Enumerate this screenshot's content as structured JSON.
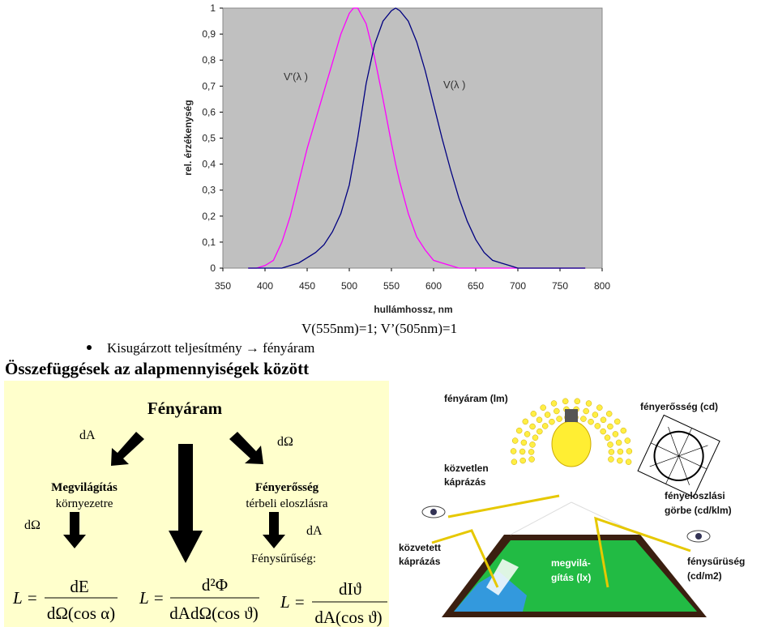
{
  "chart_data": {
    "type": "line",
    "x_label": "hullámhossz, nm",
    "y_label": "rel. érzékenység",
    "x": [
      380,
      390,
      400,
      410,
      420,
      430,
      440,
      450,
      460,
      470,
      480,
      490,
      500,
      505,
      510,
      520,
      530,
      540,
      550,
      555,
      560,
      570,
      580,
      590,
      600,
      610,
      620,
      630,
      640,
      650,
      660,
      670,
      680,
      690,
      700,
      710,
      720,
      730,
      740,
      750,
      760,
      770,
      780
    ],
    "series": [
      {
        "name": "V'(λ )",
        "color": "#ff00ff",
        "values": [
          0,
          0,
          0.01,
          0.03,
          0.1,
          0.2,
          0.33,
          0.46,
          0.57,
          0.68,
          0.79,
          0.9,
          0.98,
          1,
          1,
          0.94,
          0.81,
          0.65,
          0.48,
          0.4,
          0.33,
          0.21,
          0.12,
          0.07,
          0.03,
          0.02,
          0.01,
          0,
          0,
          0,
          0,
          0,
          0,
          0,
          0,
          0,
          0,
          0,
          0,
          0,
          0,
          0,
          0
        ]
      },
      {
        "name": "V(λ )",
        "color": "#000080",
        "values": [
          0,
          0,
          0,
          0,
          0,
          0.01,
          0.02,
          0.04,
          0.06,
          0.09,
          0.14,
          0.21,
          0.32,
          0.41,
          0.5,
          0.71,
          0.86,
          0.95,
          0.99,
          1,
          0.99,
          0.95,
          0.87,
          0.76,
          0.63,
          0.5,
          0.38,
          0.27,
          0.18,
          0.11,
          0.06,
          0.03,
          0.02,
          0.01,
          0,
          0,
          0,
          0,
          0,
          0,
          0,
          0,
          0
        ]
      }
    ],
    "xlim": [
      350,
      800
    ],
    "xticks": [
      350,
      400,
      450,
      500,
      550,
      600,
      650,
      700,
      750,
      800
    ],
    "ylim": [
      0,
      1
    ],
    "yticks": [
      0,
      {
        "value": 0.1,
        "label": "0,1"
      },
      {
        "value": 0.2,
        "label": "0,2"
      },
      {
        "value": 0.3,
        "label": "0,3"
      },
      {
        "value": 0.4,
        "label": "0,4"
      },
      {
        "value": 0.5,
        "label": "0,5"
      },
      {
        "value": 0.6,
        "label": "0,6"
      },
      {
        "value": 0.7,
        "label": "0,7"
      },
      {
        "value": 0.8,
        "label": "0,8"
      },
      {
        "value": 0.9,
        "label": "0,9"
      },
      1
    ],
    "grid": false,
    "background": "#c0c0c0"
  },
  "document": {
    "note": "V(555nm)=1; V’(505nm)=1",
    "bullet": "Kisugárzott teljesítmény → fényáram",
    "heading": "Összefüggések az alapmennyiségek között",
    "diagram": {
      "title": "Fényáram",
      "left_edge": "dA",
      "right_edge": "dΩ",
      "left_node": {
        "title": "Megvilágítás",
        "subtitle": "környezetre",
        "edge": "dΩ"
      },
      "right_node": {
        "title": "Fényerősség",
        "subtitle": "térbeli eloszlásra",
        "edge": "dA"
      },
      "bottom_label": "Fénysűrűség:",
      "formulas": [
        {
          "lhs": "L =",
          "numerator": "dE",
          "denominator": "dΩ(cos α)"
        },
        {
          "lhs": "L =",
          "numerator": "d²Φ",
          "denominator": "dAdΩ(cos ϑ)"
        },
        {
          "lhs": "L =",
          "numerator": "dIϑ",
          "denominator": "dA(cos ϑ)"
        }
      ]
    },
    "illustration": {
      "luminous_flux": "fényáram (lm)",
      "intensity": "fényerősség (cd)",
      "direct_glare": [
        "közvetlen",
        "káprázás"
      ],
      "distribution_curve": [
        "fényeloszlási",
        "görbe (cd/klm)"
      ],
      "indirect_glare": [
        "közvetett",
        "káprázás"
      ],
      "illuminance": [
        "megvilá-",
        "gítás (lx)"
      ],
      "luminance": [
        "fénysűrüség",
        "(cd/m2)"
      ]
    }
  }
}
